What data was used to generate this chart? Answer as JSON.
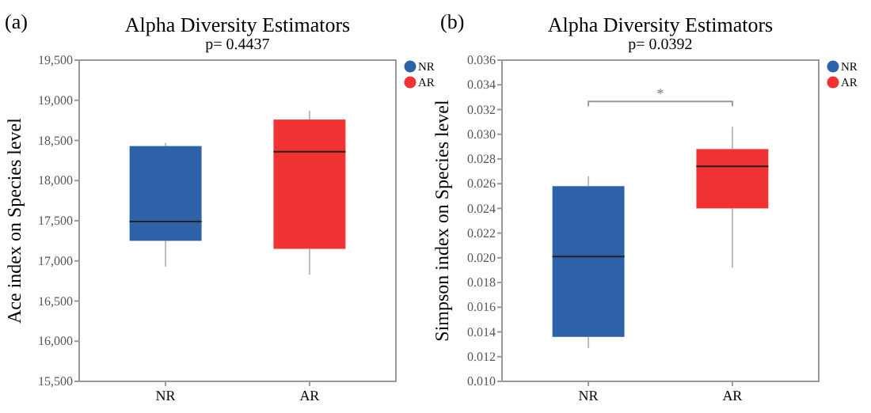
{
  "chart_data": [
    {
      "type": "box",
      "title": "Alpha Diversity  Estimators",
      "subtitle": "p= 0.4437",
      "ylabel": "Ace index on Species level",
      "categories": [
        "NR",
        "AR"
      ],
      "series": [
        {
          "name": "NR",
          "color": "#2e62a8",
          "boxes": [
            {
              "low": 16930,
              "q1": 17250,
              "median": 17490,
              "q3": 18430,
              "high": 18470
            },
            null
          ]
        },
        {
          "name": "AR",
          "color": "#f03232",
          "boxes": [
            null,
            {
              "low": 16830,
              "q1": 17150,
              "median": 18360,
              "q3": 18760,
              "high": 18870
            }
          ]
        }
      ],
      "ylim": [
        15500,
        19500
      ],
      "yticks": [
        {
          "value": 15500,
          "label": "15,500"
        },
        {
          "value": 16000,
          "label": "16,000"
        },
        {
          "value": 16500,
          "label": "16,500"
        },
        {
          "value": 17000,
          "label": "17,000"
        },
        {
          "value": 17500,
          "label": "17,500"
        },
        {
          "value": 18000,
          "label": "18,000"
        },
        {
          "value": 18500,
          "label": "18,500"
        },
        {
          "value": 19000,
          "label": "19,000"
        },
        {
          "value": 19500,
          "label": "19,500"
        }
      ],
      "grid": false,
      "legend": "top right",
      "annotations": [
        "(a)"
      ]
    },
    {
      "type": "box",
      "title": "Alpha Diversity Estimators",
      "subtitle": "p= 0.0392",
      "ylabel": "Simpson index on Species level",
      "categories": [
        "NR",
        "AR"
      ],
      "series": [
        {
          "name": "NR",
          "color": "#2e62a8",
          "boxes": [
            {
              "low": 0.0127,
              "q1": 0.0136,
              "median": 0.0201,
              "q3": 0.0258,
              "high": 0.0266
            },
            null
          ]
        },
        {
          "name": "AR",
          "color": "#f03232",
          "boxes": [
            null,
            {
              "low": 0.0192,
              "q1": 0.024,
              "median": 0.0274,
              "q3": 0.0288,
              "high": 0.0306
            }
          ]
        }
      ],
      "ylim": [
        0.01,
        0.036
      ],
      "yticks": [
        {
          "value": 0.01,
          "label": "0.010"
        },
        {
          "value": 0.012,
          "label": "0.012"
        },
        {
          "value": 0.014,
          "label": "0.014"
        },
        {
          "value": 0.016,
          "label": "0.016"
        },
        {
          "value": 0.018,
          "label": "0.018"
        },
        {
          "value": 0.02,
          "label": "0.020"
        },
        {
          "value": 0.022,
          "label": "0.022"
        },
        {
          "value": 0.024,
          "label": "0.024"
        },
        {
          "value": 0.026,
          "label": "0.026"
        },
        {
          "value": 0.028,
          "label": "0.028"
        },
        {
          "value": 0.03,
          "label": "0.030"
        },
        {
          "value": 0.032,
          "label": "0.032"
        },
        {
          "value": 0.034,
          "label": "0.034"
        },
        {
          "value": 0.036,
          "label": "0.036"
        }
      ],
      "grid": false,
      "legend": "top right",
      "annotations": [
        "(b)",
        "*"
      ]
    }
  ]
}
